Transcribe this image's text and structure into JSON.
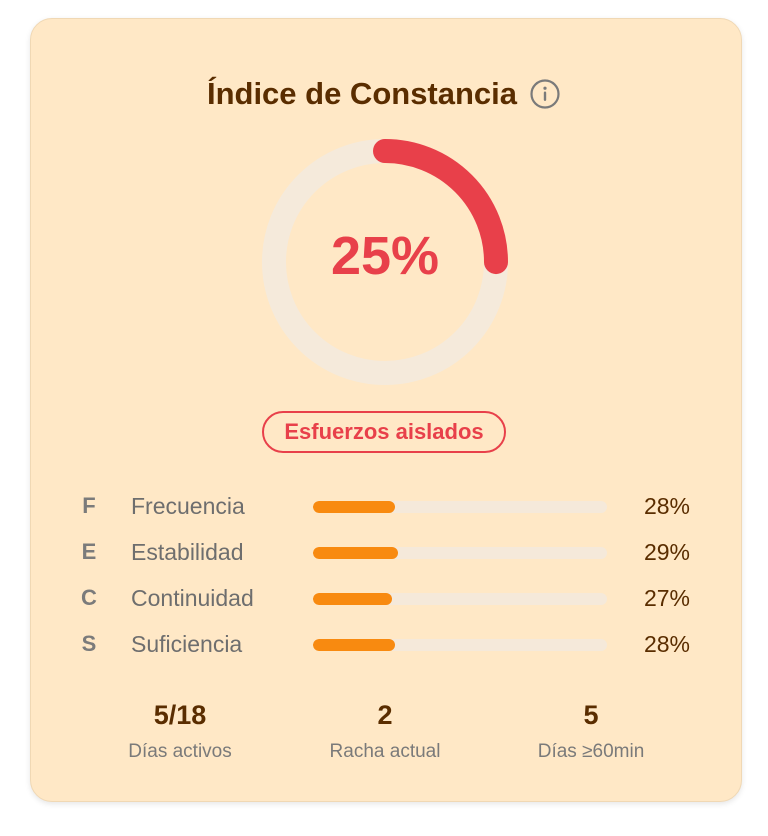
{
  "card": {
    "title": "Índice de Constancia",
    "info_icon": "info-circle-icon"
  },
  "ring": {
    "value_label": "25%",
    "fraction": 0.25,
    "progress_color": "#E8404A",
    "track_color": "#F5EADB"
  },
  "badge": {
    "label": "Esfuerzos aislados",
    "color": "#E8404A"
  },
  "metrics": [
    {
      "letter": "F",
      "name": "Frecuencia",
      "percent_label": "28%",
      "value": 0.28
    },
    {
      "letter": "E",
      "name": "Estabilidad",
      "percent_label": "29%",
      "value": 0.29
    },
    {
      "letter": "C",
      "name": "Continuidad",
      "percent_label": "27%",
      "value": 0.27
    },
    {
      "letter": "S",
      "name": "Suficiencia",
      "percent_label": "28%",
      "value": 0.28
    }
  ],
  "bar_color": "#F88A10",
  "stats": [
    {
      "value": "5/18",
      "label": "Días activos"
    },
    {
      "value": "2",
      "label": "Racha actual"
    },
    {
      "value": "5",
      "label": "Días ≥60min"
    }
  ]
}
